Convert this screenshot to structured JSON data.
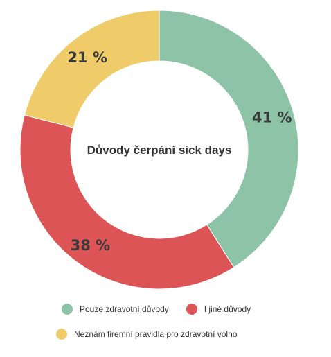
{
  "chart_data": {
    "type": "pie",
    "title": "Důvody čerpání sick days",
    "categories": [
      "Pouze zdravotní důvody",
      "I jiné důvody",
      "Neznám firemní pravidla pro zdravotní volno"
    ],
    "values": [
      41,
      38,
      21
    ],
    "value_labels": [
      "41 %",
      "38 %",
      "21 %"
    ],
    "colors": [
      "#8dc3a7",
      "#dc5456",
      "#f0cb6a"
    ],
    "legend_position": "bottom"
  }
}
